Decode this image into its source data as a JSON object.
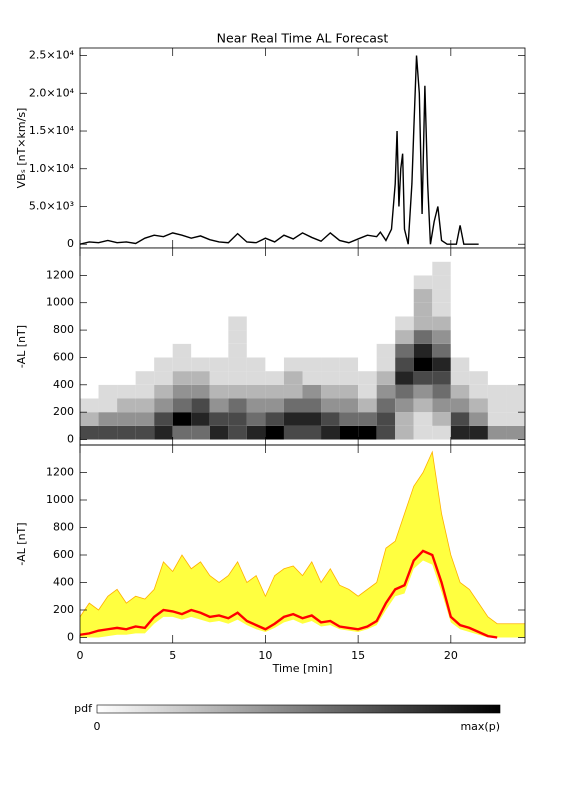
{
  "chart_data": [
    {
      "type": "line",
      "title": "Near Real Time AL Forecast",
      "ylabel": "VBₛ [nT×km/s]",
      "color": "#000000",
      "xlim": [
        0,
        24
      ],
      "xticks": [
        0,
        5,
        10,
        15,
        20
      ],
      "ylim": [
        -500,
        26000
      ],
      "yticks": [
        0,
        {
          "value": 5000,
          "label": "5.0×10³"
        },
        {
          "value": 10000,
          "label": "1.0×10⁴"
        },
        {
          "value": 15000,
          "label": "1.5×10⁴"
        },
        {
          "value": 20000,
          "label": "2.0×10⁴"
        },
        {
          "value": 25000,
          "label": "2.5×10⁴"
        }
      ],
      "x": [
        0,
        0.5,
        1,
        1.5,
        2,
        2.5,
        3,
        3.5,
        4,
        4.5,
        5,
        5.5,
        6,
        6.5,
        7,
        7.5,
        8,
        8.5,
        9,
        9.5,
        10,
        10.5,
        11,
        11.5,
        12,
        12.5,
        13,
        13.5,
        14,
        14.5,
        15,
        15.5,
        16,
        16.2,
        16.5,
        16.8,
        17,
        17.1,
        17.2,
        17.3,
        17.4,
        17.5,
        17.7,
        17.9,
        18,
        18.15,
        18.3,
        18.45,
        18.6,
        18.75,
        18.9,
        19.1,
        19.3,
        19.5,
        19.8,
        20.3,
        20.5,
        20.7,
        21.5
      ],
      "values": [
        0,
        300,
        200,
        500,
        200,
        300,
        100,
        800,
        1200,
        1000,
        1500,
        1200,
        800,
        1100,
        600,
        300,
        200,
        1400,
        300,
        200,
        800,
        300,
        1200,
        700,
        1500,
        900,
        400,
        1500,
        500,
        200,
        700,
        1200,
        1000,
        1600,
        500,
        2000,
        8000,
        15000,
        5000,
        10000,
        12000,
        2000,
        0,
        8000,
        15000,
        25000,
        20000,
        4000,
        21000,
        8000,
        0,
        3000,
        5000,
        500,
        0,
        0,
        2500,
        0,
        0
      ]
    },
    {
      "type": "heatmap",
      "ylabel": "-AL [nT]",
      "xlim": [
        0,
        24
      ],
      "xticks": [
        0,
        5,
        10,
        15,
        20
      ],
      "ylim": [
        -40,
        1400
      ],
      "yticks": [
        0,
        200,
        400,
        600,
        800,
        1000,
        1200
      ],
      "x_edges": [
        0,
        1,
        2,
        3,
        4,
        5,
        6,
        7,
        8,
        9,
        10,
        11,
        12,
        13,
        14,
        15,
        16,
        17,
        18,
        19,
        20,
        21,
        22,
        23,
        24
      ],
      "y_edges": [
        0,
        100,
        200,
        300,
        400,
        500,
        600,
        700,
        800,
        900,
        1000,
        1100,
        1200,
        1300,
        1400
      ],
      "values": [
        [
          5,
          2,
          1,
          0,
          0,
          0,
          0,
          0,
          0,
          0,
          0,
          0,
          0,
          0
        ],
        [
          5,
          3,
          1,
          1,
          0,
          0,
          0,
          0,
          0,
          0,
          0,
          0,
          0,
          0
        ],
        [
          5,
          3,
          2,
          1,
          0,
          0,
          0,
          0,
          0,
          0,
          0,
          0,
          0,
          0
        ],
        [
          5,
          3,
          2,
          1,
          1,
          0,
          0,
          0,
          0,
          0,
          0,
          0,
          0,
          0
        ],
        [
          6,
          5,
          3,
          2,
          1,
          1,
          0,
          0,
          0,
          0,
          0,
          0,
          0,
          0
        ],
        [
          4,
          7,
          4,
          3,
          2,
          1,
          1,
          0,
          0,
          0,
          0,
          0,
          0,
          0
        ],
        [
          4,
          6,
          5,
          3,
          2,
          1,
          0,
          0,
          0,
          0,
          0,
          0,
          0,
          0
        ],
        [
          6,
          5,
          3,
          2,
          1,
          1,
          0,
          0,
          0,
          0,
          0,
          0,
          0,
          0
        ],
        [
          5,
          5,
          4,
          2,
          1,
          1,
          1,
          1,
          1,
          0,
          0,
          0,
          0,
          0
        ],
        [
          6,
          4,
          3,
          2,
          1,
          1,
          0,
          0,
          0,
          0,
          0,
          0,
          0,
          0
        ],
        [
          7,
          5,
          3,
          2,
          1,
          0,
          0,
          0,
          0,
          0,
          0,
          0,
          0,
          0
        ],
        [
          5,
          6,
          4,
          2,
          2,
          1,
          0,
          0,
          0,
          0,
          0,
          0,
          0,
          0
        ],
        [
          5,
          6,
          4,
          3,
          1,
          1,
          0,
          0,
          0,
          0,
          0,
          0,
          0,
          0
        ],
        [
          6,
          5,
          3,
          2,
          1,
          1,
          0,
          0,
          0,
          0,
          0,
          0,
          0,
          0
        ],
        [
          7,
          4,
          3,
          2,
          1,
          1,
          0,
          0,
          0,
          0,
          0,
          0,
          0,
          0
        ],
        [
          7,
          4,
          2,
          1,
          1,
          0,
          0,
          0,
          0,
          0,
          0,
          0,
          0,
          0
        ],
        [
          5,
          5,
          4,
          3,
          2,
          1,
          1,
          0,
          0,
          0,
          0,
          0,
          0,
          0
        ],
        [
          2,
          2,
          3,
          4,
          6,
          5,
          4,
          2,
          1,
          0,
          0,
          0,
          0,
          0
        ],
        [
          1,
          1,
          2,
          3,
          5,
          7,
          6,
          4,
          2,
          2,
          2,
          1,
          0,
          0
        ],
        [
          1,
          2,
          3,
          4,
          5,
          6,
          4,
          3,
          2,
          1,
          1,
          1,
          1,
          0
        ],
        [
          6,
          5,
          3,
          2,
          1,
          1,
          0,
          0,
          0,
          0,
          0,
          0,
          0,
          0
        ],
        [
          6,
          3,
          2,
          1,
          1,
          0,
          0,
          0,
          0,
          0,
          0,
          0,
          0,
          0
        ],
        [
          3,
          1,
          1,
          1,
          0,
          0,
          0,
          0,
          0,
          0,
          0,
          0,
          0,
          0
        ],
        [
          3,
          1,
          1,
          1,
          0,
          0,
          0,
          0,
          0,
          0,
          0,
          0,
          0,
          0
        ]
      ]
    },
    {
      "type": "band",
      "ylabel": "-AL [nT]",
      "xlabel": "Time [min]",
      "xlim": [
        0,
        24
      ],
      "xticks": [
        0,
        5,
        10,
        15,
        20
      ],
      "ylim": [
        -40,
        1400
      ],
      "yticks": [
        0,
        200,
        400,
        600,
        800,
        1000,
        1200
      ],
      "x": [
        0,
        0.5,
        1,
        1.5,
        2,
        2.5,
        3,
        3.5,
        4,
        4.5,
        5,
        5.5,
        6,
        6.5,
        7,
        7.5,
        8,
        8.5,
        9,
        9.5,
        10,
        10.5,
        11,
        11.5,
        12,
        12.5,
        13,
        13.5,
        14,
        14.5,
        15,
        15.5,
        16,
        16.5,
        17,
        17.5,
        18,
        18.5,
        19,
        19.5,
        20,
        20.5,
        21,
        21.5,
        22,
        22.5,
        23,
        23.5,
        24
      ],
      "band": {
        "color": "#ffff40",
        "edge_color": "#ffb000",
        "upper": [
          150,
          250,
          200,
          300,
          350,
          250,
          300,
          280,
          350,
          550,
          480,
          600,
          500,
          550,
          450,
          400,
          450,
          550,
          400,
          450,
          300,
          450,
          500,
          520,
          450,
          550,
          400,
          500,
          380,
          350,
          300,
          350,
          400,
          650,
          700,
          900,
          1100,
          1200,
          1350,
          900,
          600,
          400,
          350,
          250,
          150,
          100,
          100,
          100,
          100
        ],
        "lower": [
          0,
          0,
          0,
          10,
          20,
          20,
          30,
          30,
          100,
          150,
          150,
          130,
          150,
          130,
          110,
          120,
          100,
          130,
          90,
          60,
          40,
          70,
          110,
          130,
          100,
          120,
          80,
          90,
          60,
          50,
          40,
          60,
          90,
          200,
          300,
          320,
          500,
          560,
          530,
          330,
          110,
          60,
          40,
          20,
          0,
          0,
          0,
          0,
          0
        ]
      },
      "median": {
        "color": "#ff0000",
        "values": [
          20,
          30,
          50,
          60,
          70,
          60,
          80,
          70,
          150,
          200,
          190,
          170,
          200,
          180,
          150,
          160,
          140,
          180,
          120,
          90,
          60,
          100,
          150,
          170,
          140,
          160,
          110,
          120,
          80,
          70,
          60,
          80,
          120,
          250,
          350,
          380,
          560,
          630,
          600,
          400,
          150,
          90,
          70,
          40,
          10,
          0,
          null,
          null,
          null
        ]
      }
    }
  ],
  "colorbar": {
    "label": "pdf",
    "min_label": "0",
    "max_label": "max(p)"
  }
}
